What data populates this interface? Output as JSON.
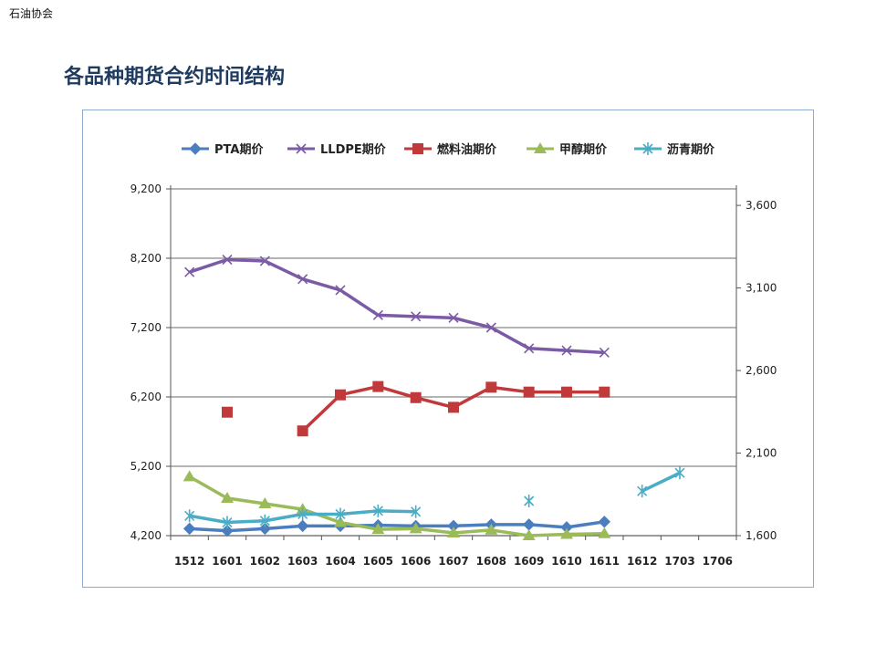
{
  "header": {
    "org_label": "石油协会"
  },
  "slide": {
    "title": "各品种期货合约时间结构"
  },
  "colors": {
    "pta": "#4a7ebf",
    "lldpe": "#7b5aa6",
    "fuel_oil": "#c0393b",
    "methanol": "#9bbb59",
    "asphalt": "#4bacc6",
    "grid": "#888888",
    "frame": "#8eaacc"
  },
  "chart_data": {
    "type": "line",
    "title": "",
    "xlabel": "",
    "ylabel": "",
    "categories": [
      "1512",
      "1601",
      "1602",
      "1603",
      "1604",
      "1605",
      "1606",
      "1607",
      "1608",
      "1609",
      "1610",
      "1611",
      "1612",
      "1703",
      "1706"
    ],
    "ylim_left": [
      4200,
      9200
    ],
    "yticks_left": [
      "4,200",
      "5,200",
      "6,200",
      "7,200",
      "8,200",
      "9,200"
    ],
    "yticks_left_values": [
      4200,
      5200,
      6200,
      7200,
      8200,
      9200
    ],
    "ylim_right": [
      1600,
      3700
    ],
    "yticks_right": [
      "1,600",
      "2,100",
      "2,600",
      "3,100",
      "3,600"
    ],
    "yticks_right_values": [
      1600,
      2100,
      2600,
      3100,
      3600
    ],
    "grid": true,
    "legend_position": "top",
    "series": [
      {
        "name": "PTA期价",
        "key": "pta",
        "marker": "diamond",
        "axis": "left",
        "values": [
          4300,
          4270,
          4300,
          4340,
          4340,
          4350,
          4340,
          4340,
          4360,
          4360,
          4320,
          4400,
          null,
          null,
          null
        ]
      },
      {
        "name": "LLDPE期价",
        "key": "lldpe",
        "marker": "x",
        "axis": "left",
        "values": [
          8000,
          8180,
          8160,
          7900,
          7740,
          7380,
          7360,
          7340,
          7200,
          6900,
          6870,
          6840,
          null,
          null,
          null
        ]
      },
      {
        "name": "燃料油期价",
        "key": "fuel_oil",
        "marker": "square",
        "axis": "left",
        "values": [
          null,
          5980,
          null,
          5710,
          6230,
          6350,
          6190,
          6050,
          6340,
          6270,
          6270,
          6270,
          null,
          null,
          null
        ]
      },
      {
        "name": "甲醇期价",
        "key": "methanol",
        "marker": "triangle",
        "axis": "left",
        "values": [
          5050,
          4740,
          4660,
          4580,
          4390,
          4290,
          4300,
          4240,
          4280,
          4200,
          4220,
          4230,
          null,
          null,
          null
        ]
      },
      {
        "name": "沥青期价",
        "key": "asphalt",
        "marker": "asterisk",
        "axis": "right",
        "values": [
          1720,
          1680,
          1690,
          1730,
          1730,
          1750,
          1745,
          null,
          null,
          1810,
          null,
          null,
          1870,
          1980,
          null
        ]
      }
    ]
  }
}
